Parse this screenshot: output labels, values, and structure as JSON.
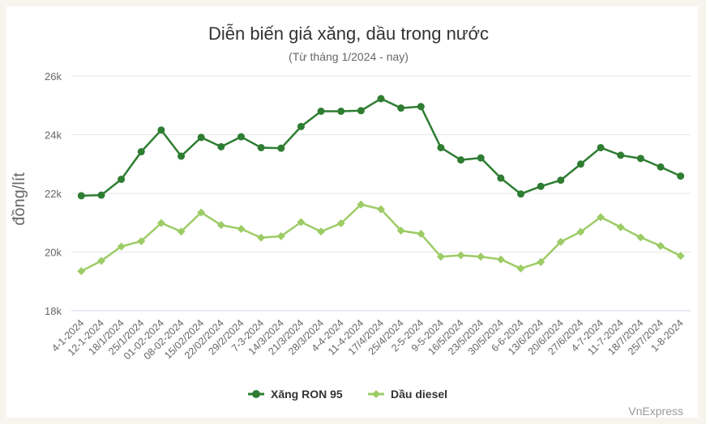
{
  "chart_data": {
    "type": "line",
    "title": "Diễn biến giá xăng, dầu trong nước",
    "subtitle": "(Từ tháng 1/2024 - nay)",
    "ylabel": "đồng/lít",
    "xlabel": "",
    "ylim": [
      18000,
      26000
    ],
    "yticks": [
      18000,
      20000,
      22000,
      24000,
      26000
    ],
    "ytick_labels": [
      "18k",
      "20k",
      "22k",
      "24k",
      "26k"
    ],
    "grid": true,
    "legend_position": "bottom-center",
    "credit": "VnExpress",
    "categories": [
      "4-1-2024",
      "12-1-2024",
      "18/1/2024",
      "25/1/2024",
      "01-02-2024",
      "08-02-2024",
      "15/02/2024",
      "22/02/2024",
      "29/2/2024",
      "7-3-2024",
      "14/3/2024",
      "21/3/2024",
      "28/3/2024",
      "4-4-2024",
      "11-4-2024",
      "17/4/2024",
      "25/4/2024",
      "2-5-2024",
      "9-5-2024",
      "16/5/2024",
      "23/5/2024",
      "30/5/2024",
      "6-6-2024",
      "13/6/2024",
      "20/6/2024",
      "27/6/2024",
      "4-7-2024",
      "11-7-2024",
      "18/7/2024",
      "25/7/2024",
      "1-8-2024"
    ],
    "series": [
      {
        "name": "Xăng RON 95",
        "color": "#2e7d32",
        "marker": "circle",
        "values": [
          21920,
          21940,
          22480,
          23420,
          24160,
          23270,
          23910,
          23590,
          23930,
          23560,
          23540,
          24280,
          24800,
          24800,
          24820,
          25230,
          24910,
          24960,
          23560,
          23140,
          23210,
          22520,
          21980,
          22240,
          22450,
          23000,
          23560,
          23300,
          23190,
          22900,
          22590
        ]
      },
      {
        "name": "Dầu diesel",
        "color": "#9ccc65",
        "marker": "diamond",
        "values": [
          19350,
          19700,
          20190,
          20370,
          20990,
          20700,
          21350,
          20920,
          20790,
          20490,
          20540,
          21020,
          20700,
          20980,
          21620,
          21460,
          20730,
          20620,
          19840,
          19890,
          19840,
          19750,
          19440,
          19660,
          20350,
          20690,
          21190,
          20850,
          20500,
          20210,
          19870
        ]
      }
    ]
  }
}
